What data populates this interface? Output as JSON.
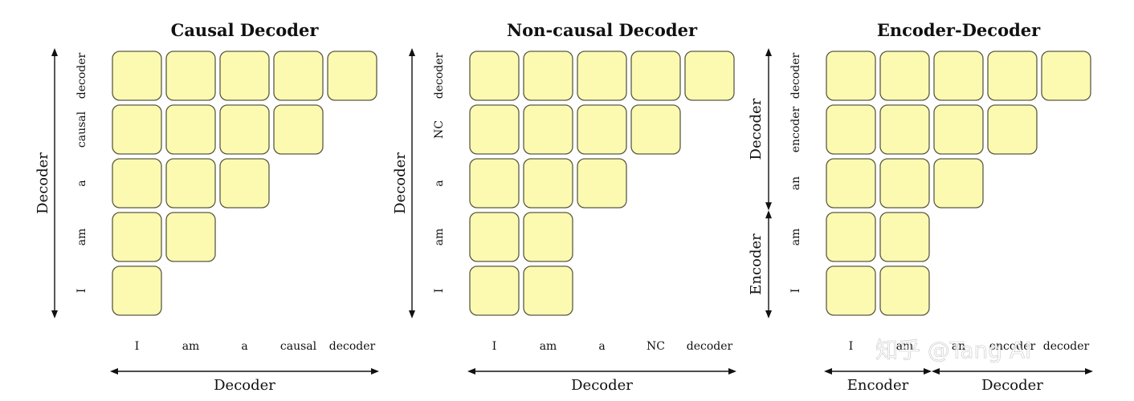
{
  "panels": [
    {
      "id": "causal",
      "title": "Causal Decoder",
      "row_tokens": [
        "decoder",
        "causal",
        "a",
        "am",
        "I"
      ],
      "col_tokens": [
        "I",
        "am",
        "a",
        "causal",
        "decoder"
      ],
      "row_fill": [
        5,
        4,
        3,
        2,
        1
      ],
      "left_axis": [
        {
          "label": "Decoder",
          "span": 5
        }
      ],
      "bottom_axis": [
        {
          "label": "Decoder",
          "span": 5
        }
      ]
    },
    {
      "id": "noncausal",
      "title": "Non-causal Decoder",
      "row_tokens": [
        "decoder",
        "NC",
        "a",
        "am",
        "I"
      ],
      "col_tokens": [
        "I",
        "am",
        "a",
        "NC",
        "decoder"
      ],
      "row_fill": [
        5,
        4,
        3,
        2,
        2
      ],
      "left_axis": [
        {
          "label": "Decoder",
          "span": 5
        }
      ],
      "bottom_axis": [
        {
          "label": "Decoder",
          "span": 5
        }
      ]
    },
    {
      "id": "encdec",
      "title": "Encoder-Decoder",
      "row_tokens": [
        "decoder",
        "encoder",
        "an",
        "am",
        "I"
      ],
      "col_tokens": [
        "I",
        "am",
        "an",
        "encoder",
        "decoder"
      ],
      "row_fill": [
        5,
        4,
        3,
        2,
        2
      ],
      "left_axis": [
        {
          "label": "Decoder",
          "span": 3
        },
        {
          "label": "Encoder",
          "span": 2
        }
      ],
      "bottom_axis": [
        {
          "label": "Encoder",
          "span": 2
        },
        {
          "label": "Decoder",
          "span": 3
        }
      ]
    }
  ],
  "watermark": "知乎 @Tang AI",
  "colors": {
    "cell_fill": "#fcf9b1",
    "cell_stroke": "#5a5a44"
  }
}
